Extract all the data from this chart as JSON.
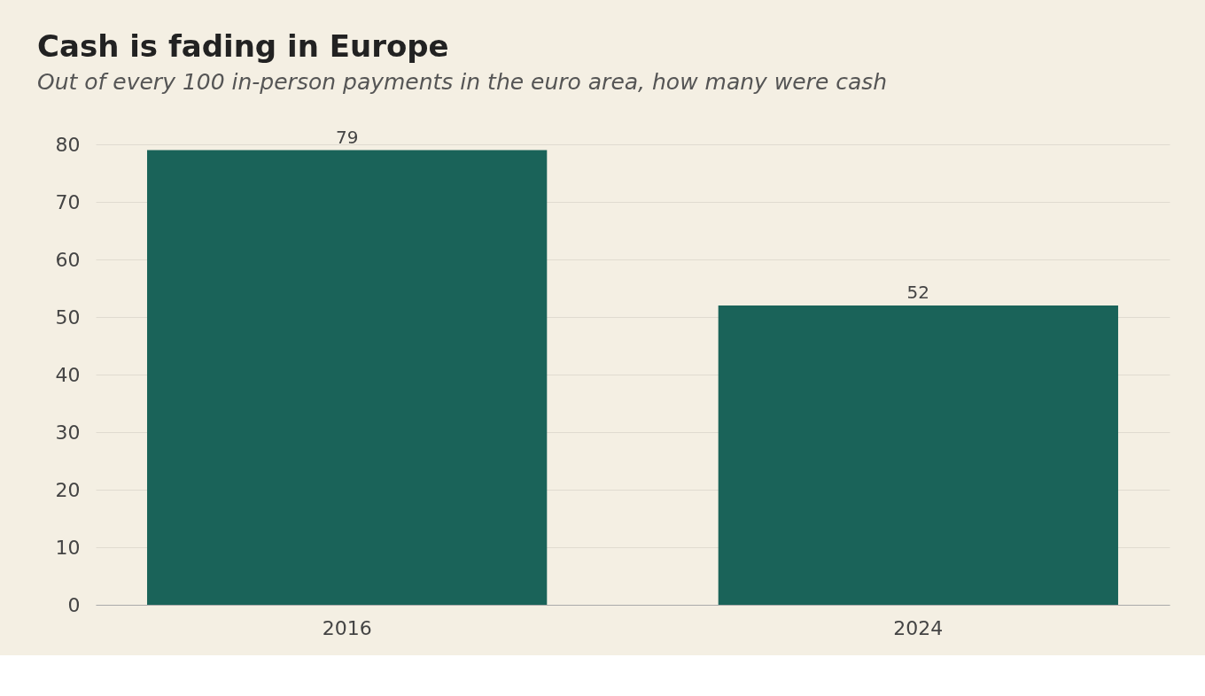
{
  "chart_data": {
    "type": "bar",
    "title": "Cash is fading in Europe",
    "subtitle": "Out of every 100 in-person payments in the euro area, how many were cash",
    "categories": [
      "2016",
      "2024"
    ],
    "values": [
      79,
      52
    ],
    "color": "#1a6359",
    "ylim": [
      0,
      80
    ],
    "yticks": [
      0,
      10,
      20,
      30,
      40,
      50,
      60,
      70,
      80
    ],
    "grid": "y",
    "data_labels": true
  }
}
